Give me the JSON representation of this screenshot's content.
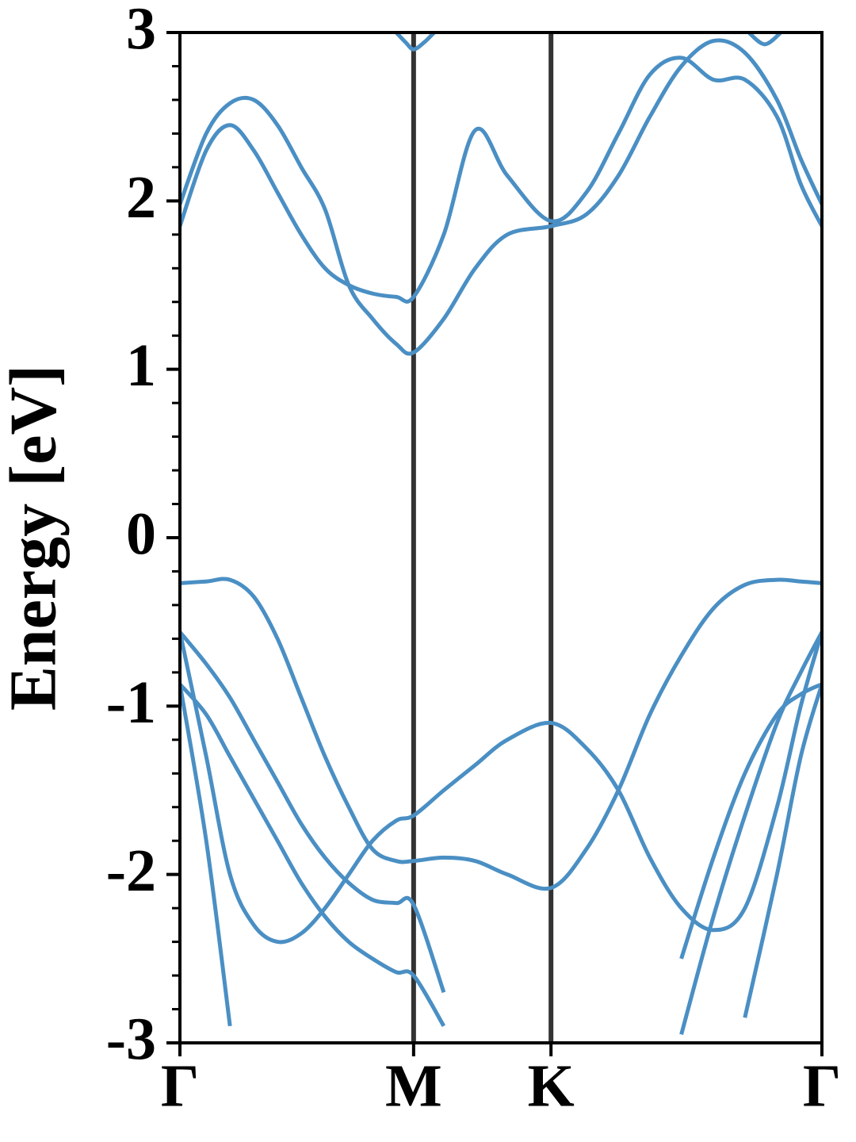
{
  "chart_data": {
    "type": "line",
    "ylabel": "Energy [eV]",
    "xlim": [
      0,
      1
    ],
    "ylim": [
      -3,
      3
    ],
    "xticks": [
      {
        "value": 0,
        "label": "Γ"
      },
      {
        "value": 0.364,
        "label": "M"
      },
      {
        "value": 0.578,
        "label": "K"
      },
      {
        "value": 1,
        "label": "Γ"
      }
    ],
    "yticks": [
      -3,
      -2,
      -1,
      0,
      1,
      2,
      3
    ],
    "yminorticks": [
      -2.8,
      -2.6,
      -2.4,
      -2.2,
      -1.8,
      -1.6,
      -1.4,
      -1.2,
      -0.8,
      -0.6,
      -0.4,
      -0.2,
      0.2,
      0.4,
      0.6,
      0.8,
      1.2,
      1.4,
      1.6,
      1.8,
      2.2,
      2.4,
      2.6,
      2.8
    ],
    "grid": true,
    "grid_color": "#333333",
    "x": [
      0,
      0.041,
      0.078,
      0.115,
      0.152,
      0.189,
      0.226,
      0.263,
      0.3,
      0.337,
      0.364,
      0.411,
      0.46,
      0.51,
      0.578,
      0.633,
      0.683,
      0.732,
      0.781,
      0.831,
      0.88,
      0.93,
      0.967,
      1
    ],
    "series": [
      {
        "color": "#4a8fc4",
        "values": [
          1.85,
          2.3,
          2.45,
          2.3,
          2.05,
          1.8,
          1.6,
          1.5,
          1.45,
          1.43,
          1.43,
          1.8,
          2.42,
          2.15,
          1.88,
          2.05,
          2.4,
          2.75,
          2.85,
          2.72,
          2.72,
          2.5,
          2.1,
          1.85
        ]
      },
      {
        "color": "#4a8fc4",
        "values": [
          1.98,
          2.4,
          2.58,
          2.6,
          2.45,
          2.2,
          1.95,
          1.5,
          1.3,
          1.15,
          1.1,
          1.3,
          1.6,
          1.8,
          1.85,
          1.92,
          2.15,
          2.5,
          2.8,
          2.95,
          2.88,
          2.6,
          2.25,
          1.98
        ]
      },
      {
        "color": "#4a8fc4",
        "x": [
          0.337,
          0.352,
          0.364,
          0.38,
          0.396
        ],
        "values": [
          3.0,
          2.94,
          2.9,
          2.94,
          3.0
        ]
      },
      {
        "color": "#4a8fc4",
        "x": [
          0.886,
          0.911,
          0.936
        ],
        "values": [
          3.0,
          2.93,
          3.0
        ]
      },
      {
        "color": "#4a8fc4",
        "values": [
          -0.27,
          -0.26,
          -0.25,
          -0.35,
          -0.6,
          -0.95,
          -1.3,
          -1.6,
          -1.85,
          -1.92,
          -1.92,
          -1.9,
          -1.92,
          -2.0,
          -2.08,
          -1.85,
          -1.5,
          -1.05,
          -0.7,
          -0.42,
          -0.28,
          -0.25,
          -0.26,
          -0.27
        ]
      },
      {
        "color": "#4a8fc4",
        "values": [
          -0.56,
          -1.3,
          -2.0,
          -2.3,
          -2.4,
          -2.35,
          -2.2,
          -2.0,
          -1.8,
          -1.68,
          -1.65,
          -1.5,
          -1.35,
          -1.2,
          -1.1,
          -1.25,
          -1.5,
          -1.9,
          -2.2,
          -2.33,
          -2.2,
          -1.6,
          -1.0,
          -0.56
        ]
      },
      {
        "color": "#4a8fc4",
        "values": [
          -0.56,
          -0.75,
          -0.95,
          -1.2,
          -1.45,
          -1.7,
          -1.9,
          -2.05,
          -2.15,
          -2.17,
          -2.18,
          -2.7,
          null,
          null,
          null,
          null,
          null,
          null,
          -2.95,
          -2.25,
          -1.65,
          -1.1,
          -0.8,
          -0.56
        ]
      },
      {
        "color": "#4a8fc4",
        "values": [
          -0.87,
          -1.05,
          -1.3,
          -1.55,
          -1.8,
          -2.05,
          -2.25,
          -2.4,
          -2.5,
          -2.58,
          -2.6,
          -2.9,
          null,
          null,
          null,
          null,
          null,
          null,
          -2.5,
          -1.9,
          -1.4,
          -1.05,
          -0.93,
          -0.87
        ]
      },
      {
        "color": "#4a8fc4",
        "values": [
          -0.87,
          -1.8,
          -2.9,
          null,
          null,
          null,
          null,
          null,
          null,
          null,
          null,
          null,
          null,
          null,
          null,
          null,
          null,
          null,
          null,
          null,
          -2.85,
          -2.0,
          -1.3,
          -0.87
        ]
      }
    ]
  }
}
